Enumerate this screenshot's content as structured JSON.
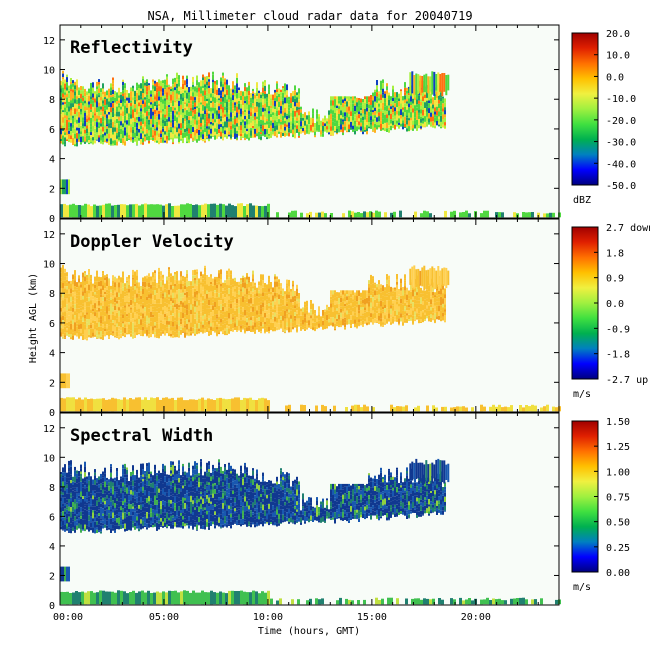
{
  "figure": {
    "title": "NSA, Millimeter cloud radar data for 20040719",
    "xlabel": "Time (hours, GMT)",
    "ylabel": "Height AGL (km)"
  },
  "chart_data": [
    {
      "type": "heatmap",
      "title": "Reflectivity",
      "x_range": [
        "00:00",
        "24:00"
      ],
      "x_ticks": [
        "00:00",
        "05:00",
        "10:00",
        "15:00",
        "20:00"
      ],
      "y_ticks": [
        0,
        2,
        4,
        6,
        8,
        10,
        12
      ],
      "ylim": [
        0,
        13
      ],
      "colorbar": {
        "ticks": [
          "20.0",
          "10.0",
          "0.0",
          "-10.0",
          "-20.0",
          "-30.0",
          "-40.0",
          "-50.0"
        ],
        "unit": "dBZ",
        "range": [
          -50,
          20
        ]
      },
      "cloud_layer": {
        "start_hour": 0,
        "end_hour": 18.5,
        "base_km": [
          5.0,
          6.2
        ],
        "top_km": [
          10.0,
          9.0
        ]
      },
      "near_surface_echo_km": [
        0,
        1
      ],
      "dominant_value_range": "-30 to -10"
    },
    {
      "type": "heatmap",
      "title": "Doppler Velocity",
      "x_range": [
        "00:00",
        "24:00"
      ],
      "x_ticks": [
        "00:00",
        "05:00",
        "10:00",
        "15:00",
        "20:00"
      ],
      "y_ticks": [
        0,
        2,
        4,
        6,
        8,
        10,
        12
      ],
      "ylim": [
        0,
        13
      ],
      "colorbar": {
        "ticks": [
          "2.7 down",
          "1.8",
          "0.9",
          "0.0",
          "-0.9",
          "-1.8",
          "-2.7 up"
        ],
        "unit": "m/s",
        "range": [
          -2.7,
          2.7
        ]
      },
      "cloud_layer": {
        "start_hour": 0,
        "end_hour": 18.5,
        "base_km": [
          5.0,
          6.2
        ],
        "top_km": [
          10.0,
          9.0
        ]
      },
      "near_surface_echo_km": [
        0,
        1
      ],
      "dominant_value_range": "0.0 to 0.9"
    },
    {
      "type": "heatmap",
      "title": "Spectral Width",
      "x_range": [
        "00:00",
        "24:00"
      ],
      "x_ticks": [
        "00:00",
        "05:00",
        "10:00",
        "15:00",
        "20:00"
      ],
      "y_ticks": [
        0,
        2,
        4,
        6,
        8,
        10,
        12
      ],
      "ylim": [
        0,
        13
      ],
      "colorbar": {
        "ticks": [
          "1.50",
          "1.25",
          "1.00",
          "0.75",
          "0.50",
          "0.25",
          "0.00"
        ],
        "unit": "m/s",
        "range": [
          0,
          1.5
        ]
      },
      "cloud_layer": {
        "start_hour": 0,
        "end_hour": 18.5,
        "base_km": [
          5.0,
          6.2
        ],
        "top_km": [
          10.0,
          9.0
        ]
      },
      "near_surface_echo_km": [
        0,
        1
      ],
      "dominant_value_range": "0.0 to 0.3"
    }
  ]
}
